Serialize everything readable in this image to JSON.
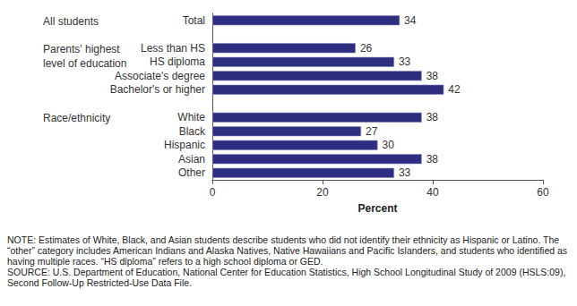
{
  "chart_data": {
    "type": "bar",
    "orientation": "horizontal",
    "categories": [
      "Total",
      null,
      "Less than HS",
      "HS diploma",
      "Associate's degree",
      "Bachelor's or higher",
      null,
      "White",
      "Black",
      "Hispanic",
      "Asian",
      "Other"
    ],
    "values": [
      34,
      null,
      26,
      33,
      38,
      42,
      null,
      38,
      27,
      30,
      38,
      33
    ],
    "color": "#2d2e7f",
    "xlim": [
      0,
      60
    ],
    "xticks": [
      0,
      20,
      40,
      60
    ],
    "xlabel": "Percent",
    "grid": false,
    "data_labels": true,
    "groups": [
      {
        "label": "All students",
        "categories": [
          "Total"
        ]
      },
      {
        "label": "Parents' highest level of education",
        "categories": [
          "Less than HS",
          "HS diploma",
          "Associate's degree",
          "Bachelor's or higher"
        ]
      },
      {
        "label": "Race/ethnicity",
        "categories": [
          "White",
          "Black",
          "Hispanic",
          "Asian",
          "Other"
        ]
      }
    ],
    "notes": [
      "NOTE: Estimates of White, Black, and Asian students describe students who did not identify their ethnicity as Hispanic or Latino. The “other” category includes American Indians and Alaska Natives, Native Hawaiians and Pacific Islanders, and students who identified as having multiple races. “HS diploma” refers to a high school diploma or GED.",
      "SOURCE: U.S. Department of Education, National Center for Education Statistics, High School Longitudinal Study of 2009 (HSLS:09), Second Follow-Up Restricted-Use Data File."
    ]
  }
}
